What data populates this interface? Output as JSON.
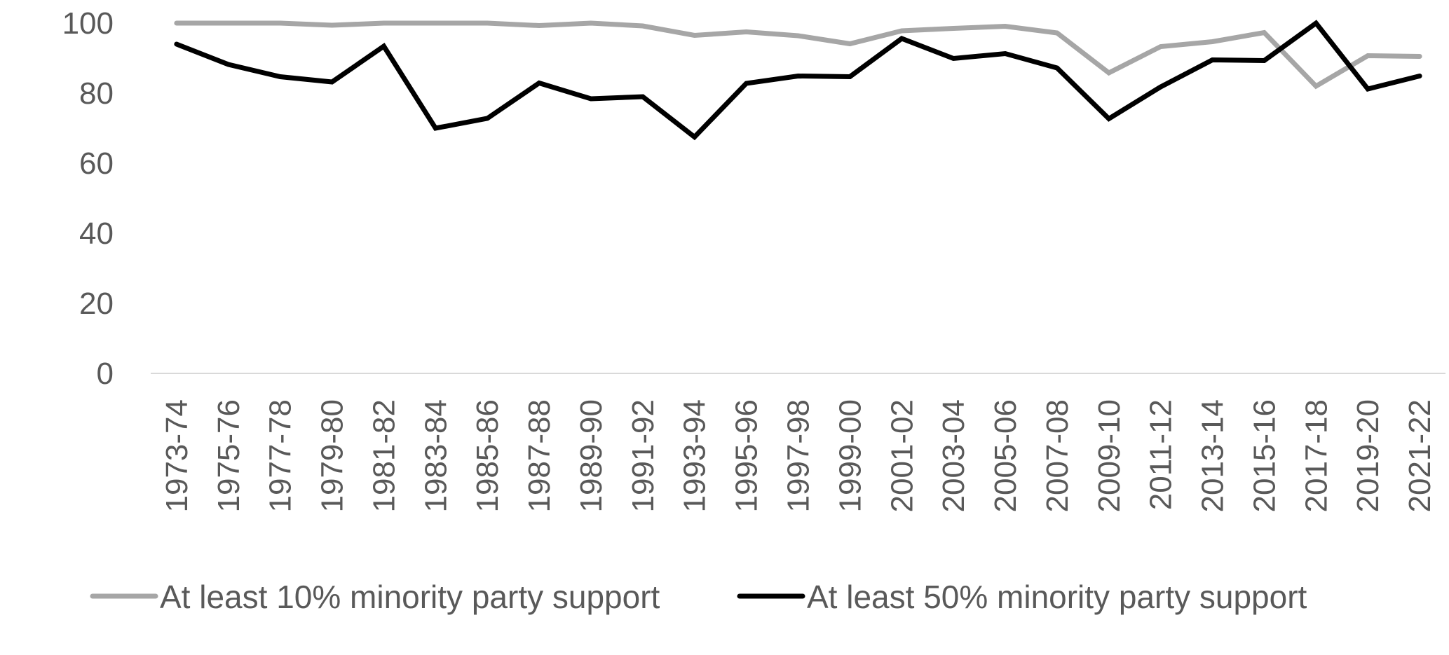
{
  "chart_data": {
    "type": "line",
    "title": "",
    "xlabel": "",
    "ylabel": "",
    "ylim": [
      0,
      100
    ],
    "yticks": [
      "0",
      "20",
      "40",
      "60",
      "80",
      "100"
    ],
    "grid": false,
    "legend_position": "bottom",
    "categories": [
      "1973-74",
      "1975-76",
      "1977-78",
      "1979-80",
      "1981-82",
      "1983-84",
      "1985-86",
      "1987-88",
      "1989-90",
      "1991-92",
      "1993-94",
      "1995-96",
      "1997-98",
      "1999-00",
      "2001-02",
      "2003-04",
      "2005-06",
      "2007-08",
      "2009-10",
      "2011-12",
      "2013-14",
      "2015-16",
      "2017-18",
      "2019-20",
      "2021-22"
    ],
    "series": [
      {
        "name": "At least 10% minority party support",
        "color": "#a6a6a6",
        "values": [
          100,
          100,
          100,
          99.4,
          100,
          100,
          100,
          99.3,
          100,
          99.2,
          96.5,
          97.5,
          96.4,
          94.1,
          97.8,
          98.5,
          99.1,
          97.2,
          85.8,
          93.3,
          94.7,
          97.3,
          82.0,
          90.7,
          90.5
        ]
      },
      {
        "name": "At least 50% minority party support",
        "color": "#000000",
        "values": [
          94.0,
          88.2,
          84.7,
          83.2,
          93.4,
          70.0,
          72.8,
          82.9,
          78.4,
          79.0,
          67.5,
          82.8,
          84.9,
          84.7,
          95.6,
          89.9,
          91.3,
          87.2,
          72.7,
          81.8,
          89.5,
          89.3,
          100,
          81.2,
          84.9
        ]
      }
    ]
  }
}
